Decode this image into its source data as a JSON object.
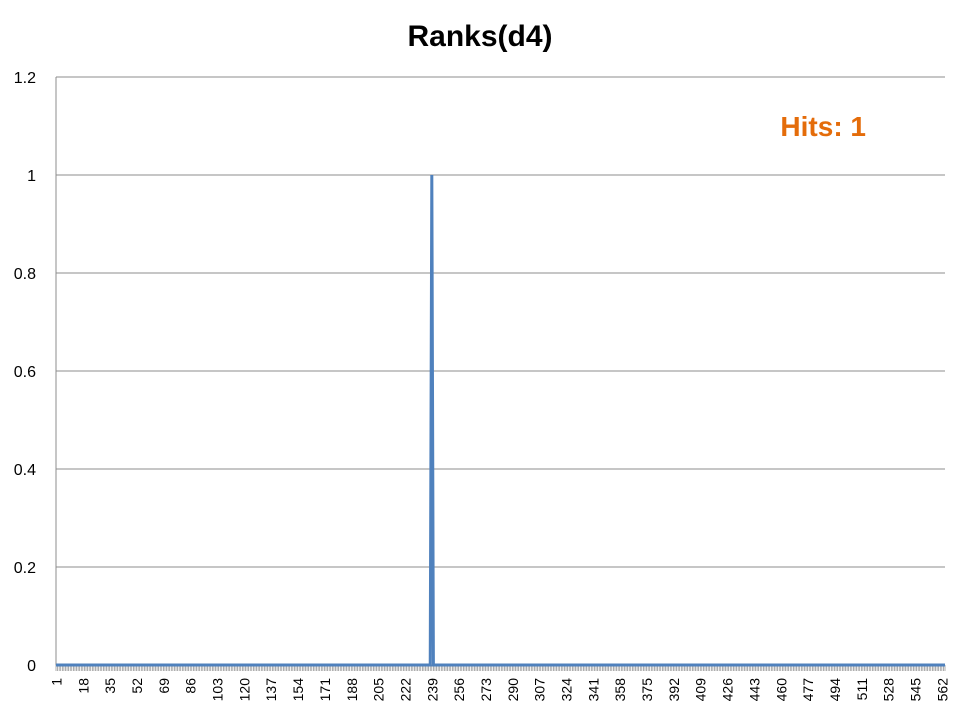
{
  "chart_data": {
    "type": "line",
    "title": "Ranks(d4)",
    "xlabel": "",
    "ylabel": "",
    "x_range": [
      1,
      564
    ],
    "x_tick_labels": [
      "1",
      "18",
      "35",
      "52",
      "69",
      "86",
      "103",
      "120",
      "137",
      "154",
      "171",
      "188",
      "205",
      "222",
      "239",
      "256",
      "273",
      "290",
      "307",
      "324",
      "341",
      "358",
      "375",
      "392",
      "409",
      "426",
      "443",
      "460",
      "477",
      "494",
      "511",
      "528",
      "545",
      "562"
    ],
    "ylim": [
      0,
      1.2
    ],
    "y_ticks": [
      0,
      0.2,
      0.4,
      0.6,
      0.8,
      1,
      1.2
    ],
    "y_tick_labels": [
      "0",
      "0.2",
      "0.4",
      "0.6",
      "0.8",
      "1",
      "1.2"
    ],
    "grid": true,
    "legend": "none",
    "series": [
      {
        "color": "#4F81BD",
        "points": [
          [
            1,
            0
          ],
          [
            238,
            0
          ],
          [
            239,
            1
          ],
          [
            240,
            0
          ],
          [
            564,
            0
          ]
        ]
      }
    ],
    "annotation": {
      "text": "Hits: 1",
      "color": "#E46C0A",
      "placement": "top-right"
    }
  }
}
